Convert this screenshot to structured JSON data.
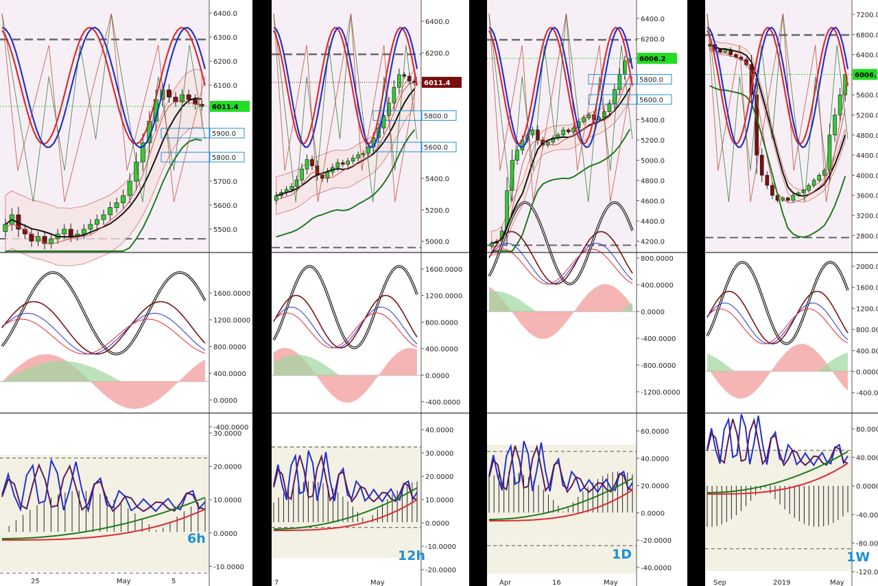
{
  "colors": {
    "up_candle": "#33cc33",
    "down_candle": "#7a1010",
    "blue_line": "#1f2fd0",
    "red_line": "#e0282e",
    "black_line": "#111111",
    "annotation": "#1e90d6",
    "price_tag_green": "#22dd22",
    "price_tag_dark": "#7a0d0d",
    "band_fill": "#f5e3e3",
    "osc_bg": "#f3f1e4"
  },
  "chart_data": [
    {
      "type": "candlestick",
      "timeframe": "6h",
      "x_tick_labels": [
        "25",
        "May",
        "5"
      ],
      "price_panel": {
        "y_ticks": [
          "6400.0",
          "6300.0",
          "6200.0",
          "6100.0",
          "6000.0",
          "5900.0",
          "5800.0",
          "5700.0",
          "5600.0",
          "5500.0"
        ],
        "last_price_tag": "6011.4",
        "box_labels": [
          "5900.0",
          "5800.0"
        ],
        "approx_close_series": [
          5520,
          5560,
          5500,
          5480,
          5450,
          5470,
          5440,
          5460,
          5480,
          5500,
          5470,
          5480,
          5500,
          5520,
          5540,
          5560,
          5590,
          5610,
          5640,
          5700,
          5780,
          5860,
          5950,
          6040,
          6080,
          6050,
          6030,
          6060,
          6040,
          6020,
          6011
        ]
      },
      "oscillator_1": {
        "y_ticks": [
          "1600.0000",
          "1200.0000",
          "800.0000",
          "400.0000",
          "0.0000",
          "-400.0000"
        ]
      },
      "oscillator_2": {
        "y_ticks": [
          "30.0000",
          "20.0000",
          "10.0000",
          "0.0000",
          "-10.0000"
        ]
      }
    },
    {
      "type": "candlestick",
      "timeframe": "12h",
      "x_tick_labels": [
        "7",
        "May"
      ],
      "price_panel": {
        "y_ticks": [
          "6400.0",
          "6200.0",
          "6000.0",
          "5800.0",
          "5600.0",
          "5400.0",
          "5200.0",
          "5000.0"
        ],
        "last_price_tag": "6011.4",
        "box_labels": [
          "5800.0",
          "5600.0"
        ],
        "approx_close_series": [
          5290,
          5310,
          5330,
          5350,
          5390,
          5460,
          5520,
          5480,
          5420,
          5400,
          5440,
          5470,
          5500,
          5490,
          5510,
          5530,
          5550,
          5560,
          5600,
          5660,
          5720,
          5800,
          5880,
          5980,
          6060,
          6050,
          6020,
          6011
        ]
      },
      "oscillator_1": {
        "y_ticks": [
          "1600.0000",
          "1200.0000",
          "800.0000",
          "400.0000",
          "0.0000",
          "-400.0000"
        ]
      },
      "oscillator_2": {
        "y_ticks": [
          "40.0000",
          "30.0000",
          "20.0000",
          "10.0000",
          "0.0000",
          "-10.0000",
          "-20.0000"
        ]
      }
    },
    {
      "type": "candlestick",
      "timeframe": "1D",
      "x_tick_labels": [
        "Apr",
        "16",
        "May"
      ],
      "price_panel": {
        "y_ticks": [
          "6400.0",
          "6200.0",
          "6000.0",
          "5800.0",
          "5600.0",
          "5400.0",
          "5200.0",
          "5000.0",
          "4800.0",
          "4600.0",
          "4400.0",
          "4200.0"
        ],
        "last_price_tag": "6006.2",
        "box_labels": [
          "5800.0",
          "5600.0"
        ],
        "approx_close_series": [
          4180,
          4200,
          4300,
          4700,
          5000,
          5100,
          5200,
          5250,
          5300,
          5200,
          5150,
          5180,
          5220,
          5250,
          5300,
          5280,
          5320,
          5380,
          5420,
          5450,
          5400,
          5420,
          5480,
          5560,
          5700,
          5850,
          5980,
          6006
        ]
      },
      "oscillator_1": {
        "y_ticks": [
          "800.0000",
          "400.0000",
          "0.0000",
          "-400.0000",
          "-800.0000",
          "-1200.0000"
        ]
      },
      "oscillator_2": {
        "y_ticks": [
          "60.0000",
          "40.0000",
          "20.0000",
          "0.0000",
          "-20.0000",
          "-40.0000"
        ]
      }
    },
    {
      "type": "candlestick",
      "timeframe": "1W",
      "x_tick_labels": [
        "Sep",
        "2019",
        "May"
      ],
      "price_panel": {
        "y_ticks": [
          "7200.0",
          "6800.0",
          "6400.0",
          "6000.0",
          "5600.0",
          "5200.0",
          "4800.0",
          "4400.0",
          "4000.0",
          "3600.0",
          "3200.0",
          "2800.0"
        ],
        "last_price_tag": "6006.",
        "approx_close_series": [
          6600,
          6500,
          6450,
          6500,
          6400,
          6350,
          6300,
          6200,
          5600,
          4400,
          4000,
          3800,
          3600,
          3500,
          3550,
          3500,
          3600,
          3650,
          3700,
          3800,
          3900,
          4000,
          4100,
          4800,
          5200,
          5600,
          6006
        ]
      },
      "oscillator_1": {
        "y_ticks": [
          "2000.0000",
          "1600.0000",
          "1200.0000",
          "800.0000",
          "400.0000",
          "0.0000",
          "-400.0000"
        ]
      },
      "oscillator_2": {
        "y_ticks": [
          "80.0000",
          "40.0000",
          "0.0000",
          "-40.0000",
          "-80.0000",
          "-120.0000"
        ]
      }
    }
  ]
}
